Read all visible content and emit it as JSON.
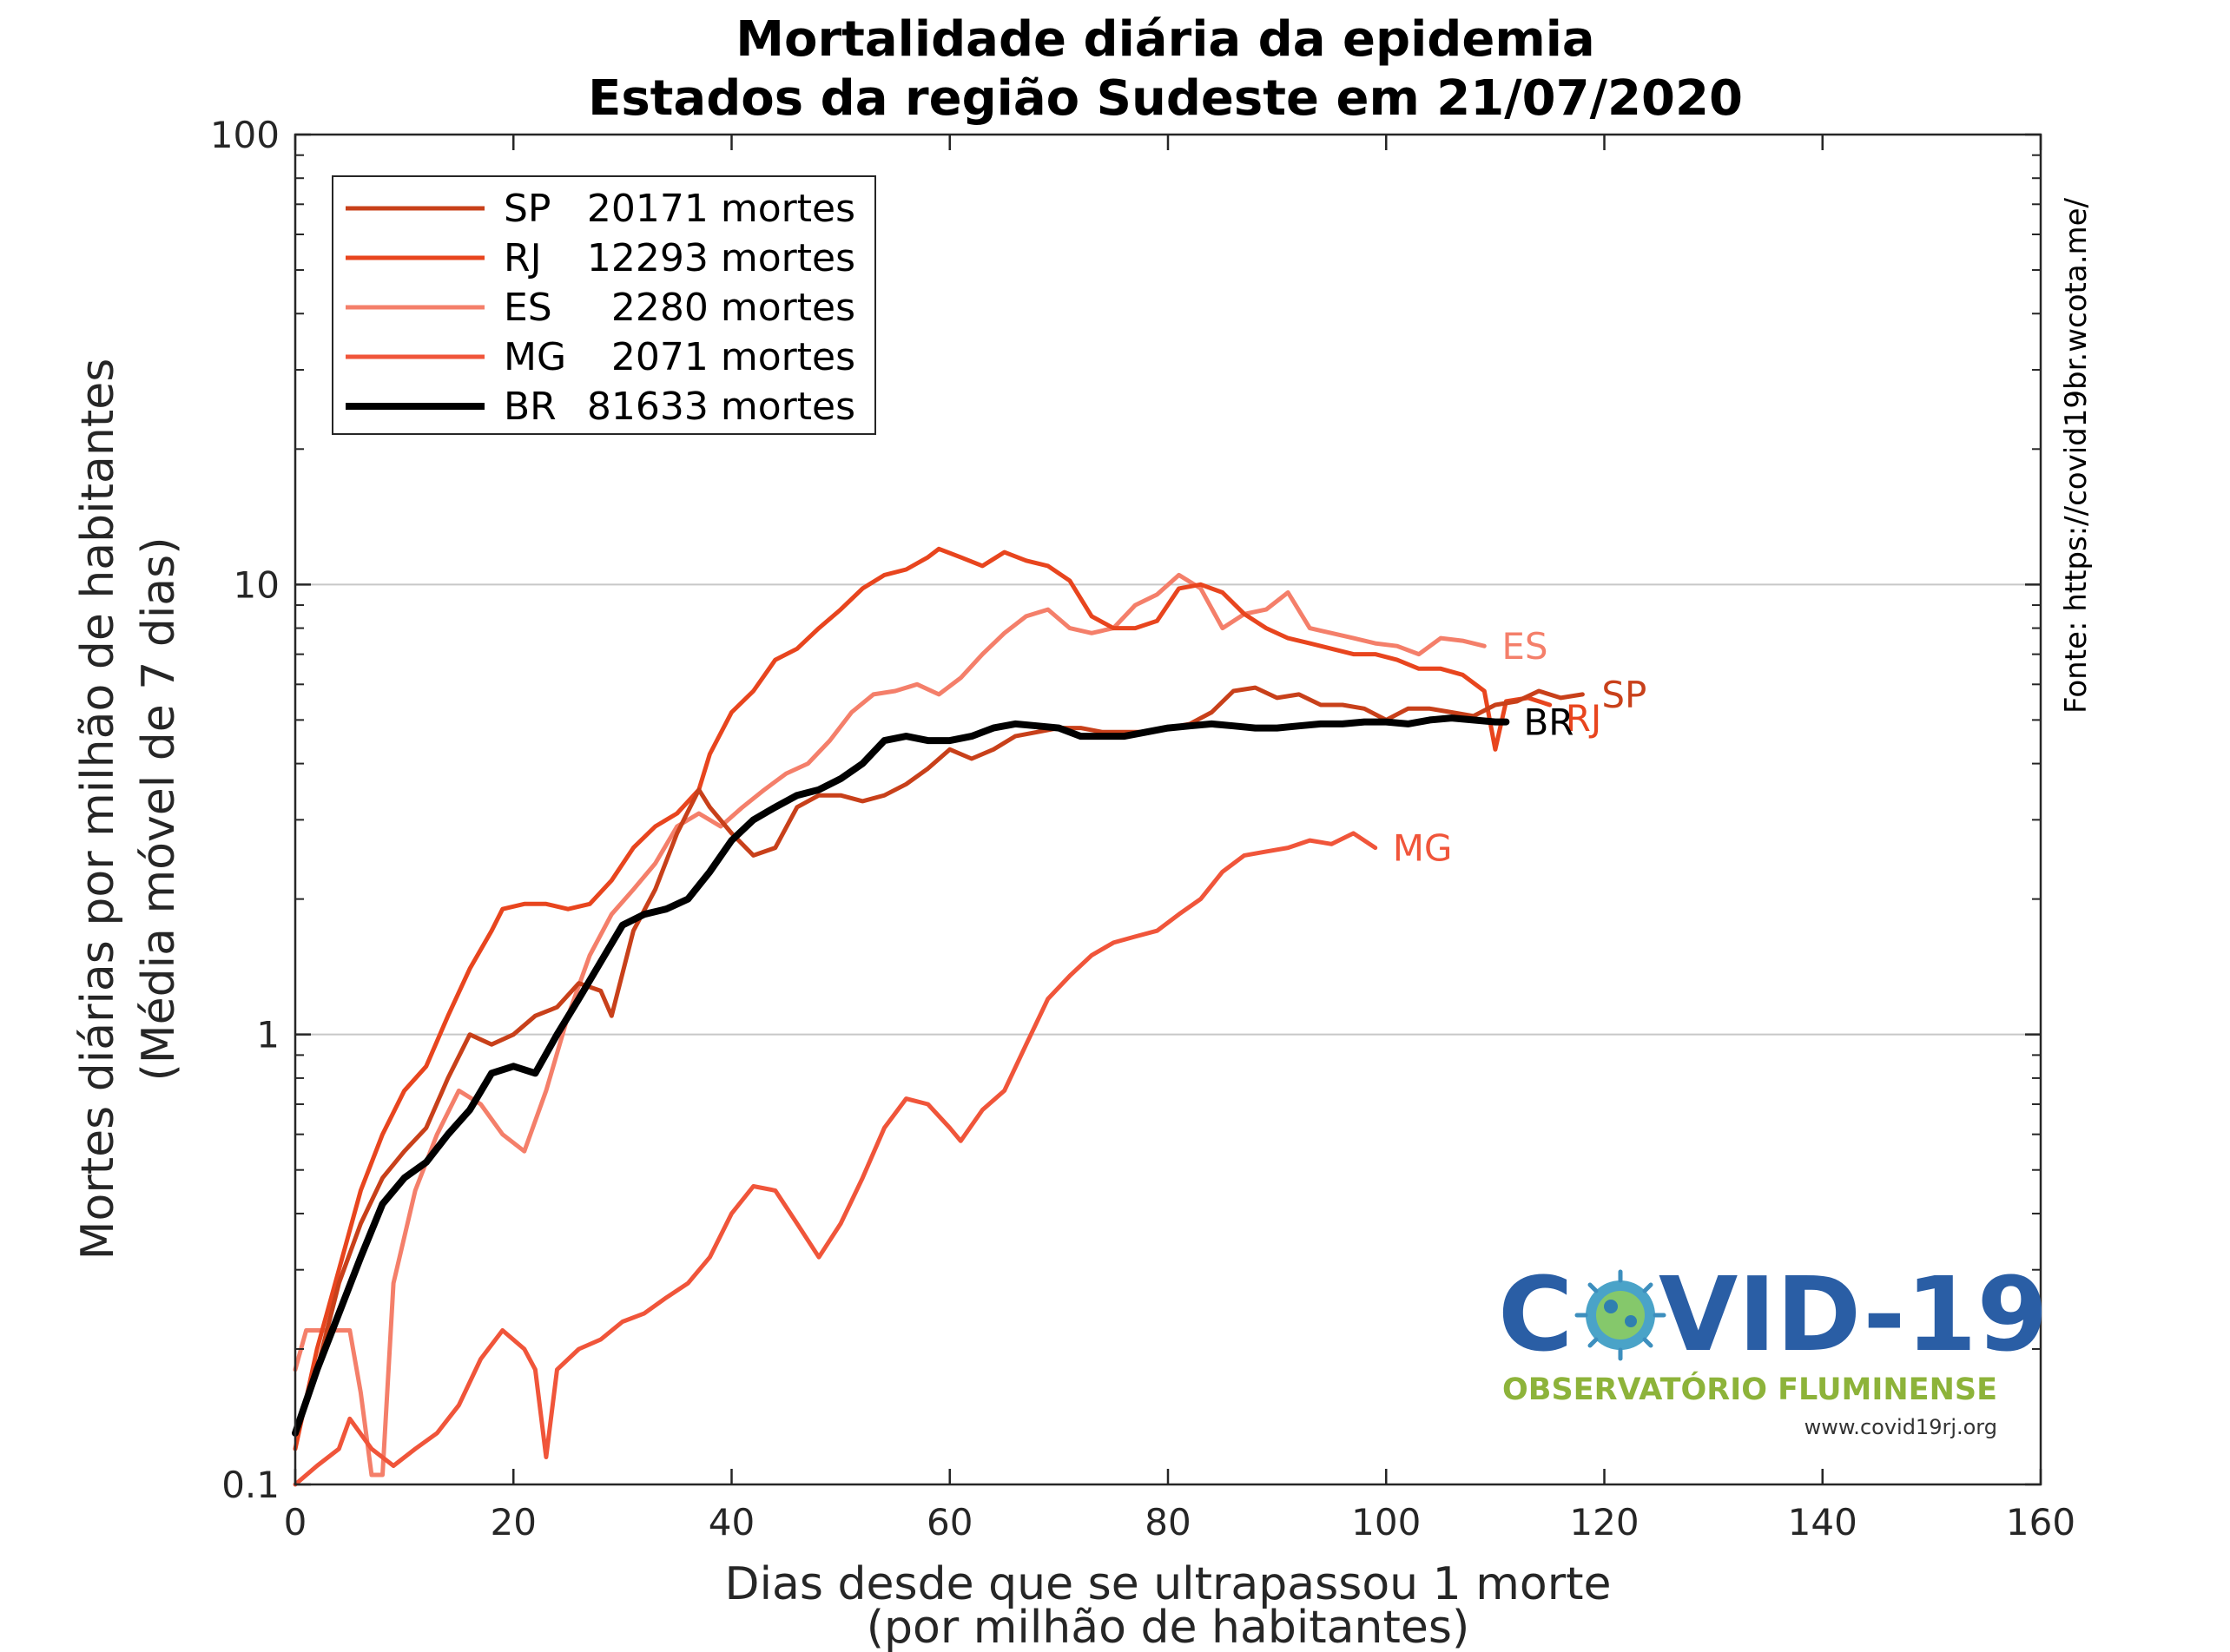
{
  "chart_data": {
    "type": "line",
    "title": "Mortalidade diária da epidemia",
    "subtitle": "Estados da região Sudeste em 21/07/2020",
    "xlabel": "Dias desde que se ultrapassou 1 morte",
    "xlabel2": "(por milhão de habitantes)",
    "ylabel": "Mortes diárias por milhão de habitantes",
    "ylabel2": "(Média móvel de 7 dias)",
    "xlim": [
      0,
      160
    ],
    "ylim": [
      0.1,
      100
    ],
    "yscale": "log",
    "grid": "horizontal major lines",
    "legend_position": "top-left",
    "x_ticks": [
      "0",
      "20",
      "40",
      "60",
      "80",
      "100",
      "120",
      "140",
      "160"
    ],
    "y_ticks": [
      "0.1",
      "1",
      "10",
      "100"
    ],
    "source": "Fonte: https://covid19br.wcota.me/",
    "series": [
      {
        "name": "SP",
        "deaths": "20171 mortes",
        "color": "#c8401a",
        "label": "SP",
        "points": [
          [
            0,
            0.13
          ],
          [
            2,
            0.18
          ],
          [
            4,
            0.28
          ],
          [
            6,
            0.38
          ],
          [
            8,
            0.48
          ],
          [
            10,
            0.55
          ],
          [
            12,
            0.62
          ],
          [
            14,
            0.8
          ],
          [
            16,
            1.0
          ],
          [
            18,
            0.95
          ],
          [
            20,
            1.0
          ],
          [
            22,
            1.1
          ],
          [
            24,
            1.15
          ],
          [
            26,
            1.3
          ],
          [
            28,
            1.25
          ],
          [
            29,
            1.1
          ],
          [
            31,
            1.7
          ],
          [
            33,
            2.1
          ],
          [
            35,
            2.8
          ],
          [
            37,
            3.5
          ],
          [
            38,
            3.2
          ],
          [
            40,
            2.8
          ],
          [
            42,
            2.5
          ],
          [
            44,
            2.6
          ],
          [
            46,
            3.2
          ],
          [
            48,
            3.4
          ],
          [
            50,
            3.4
          ],
          [
            52,
            3.3
          ],
          [
            54,
            3.4
          ],
          [
            56,
            3.6
          ],
          [
            58,
            3.9
          ],
          [
            60,
            4.3
          ],
          [
            62,
            4.1
          ],
          [
            64,
            4.3
          ],
          [
            66,
            4.6
          ],
          [
            68,
            4.7
          ],
          [
            70,
            4.8
          ],
          [
            72,
            4.8
          ],
          [
            74,
            4.7
          ],
          [
            76,
            4.7
          ],
          [
            78,
            4.7
          ],
          [
            80,
            4.8
          ],
          [
            82,
            4.9
          ],
          [
            84,
            5.2
          ],
          [
            86,
            5.8
          ],
          [
            88,
            5.9
          ],
          [
            90,
            5.6
          ],
          [
            92,
            5.7
          ],
          [
            94,
            5.4
          ],
          [
            96,
            5.4
          ],
          [
            98,
            5.3
          ],
          [
            100,
            5.0
          ],
          [
            102,
            5.3
          ],
          [
            104,
            5.3
          ],
          [
            106,
            5.2
          ],
          [
            108,
            5.1
          ],
          [
            110,
            5.4
          ],
          [
            112,
            5.5
          ],
          [
            114,
            5.8
          ],
          [
            116,
            5.6
          ],
          [
            118,
            5.7
          ]
        ]
      },
      {
        "name": "RJ",
        "deaths": "12293 mortes",
        "color": "#e8451e",
        "label": "RJ",
        "points": [
          [
            0,
            0.12
          ],
          [
            2,
            0.2
          ],
          [
            4,
            0.3
          ],
          [
            6,
            0.45
          ],
          [
            8,
            0.6
          ],
          [
            10,
            0.75
          ],
          [
            12,
            0.85
          ],
          [
            14,
            1.1
          ],
          [
            16,
            1.4
          ],
          [
            18,
            1.7
          ],
          [
            19,
            1.9
          ],
          [
            21,
            1.95
          ],
          [
            23,
            1.95
          ],
          [
            25,
            1.9
          ],
          [
            27,
            1.95
          ],
          [
            29,
            2.2
          ],
          [
            31,
            2.6
          ],
          [
            33,
            2.9
          ],
          [
            35,
            3.1
          ],
          [
            37,
            3.5
          ],
          [
            38,
            4.2
          ],
          [
            40,
            5.2
          ],
          [
            42,
            5.8
          ],
          [
            44,
            6.8
          ],
          [
            46,
            7.2
          ],
          [
            48,
            8.0
          ],
          [
            50,
            8.8
          ],
          [
            52,
            9.8
          ],
          [
            54,
            10.5
          ],
          [
            56,
            10.8
          ],
          [
            58,
            11.5
          ],
          [
            59,
            12.0
          ],
          [
            61,
            11.5
          ],
          [
            63,
            11.0
          ],
          [
            65,
            11.8
          ],
          [
            67,
            11.3
          ],
          [
            69,
            11.0
          ],
          [
            71,
            10.2
          ],
          [
            73,
            8.5
          ],
          [
            75,
            8.0
          ],
          [
            77,
            8.0
          ],
          [
            79,
            8.3
          ],
          [
            81,
            9.8
          ],
          [
            83,
            10.0
          ],
          [
            85,
            9.6
          ],
          [
            87,
            8.6
          ],
          [
            89,
            8.0
          ],
          [
            91,
            7.6
          ],
          [
            93,
            7.4
          ],
          [
            95,
            7.2
          ],
          [
            97,
            7.0
          ],
          [
            99,
            7.0
          ],
          [
            101,
            6.8
          ],
          [
            103,
            6.5
          ],
          [
            105,
            6.5
          ],
          [
            107,
            6.3
          ],
          [
            109,
            5.8
          ],
          [
            110,
            4.3
          ],
          [
            111,
            5.5
          ],
          [
            113,
            5.6
          ],
          [
            115,
            5.4
          ]
        ]
      },
      {
        "name": "ES",
        "deaths": "2280 mortes",
        "color": "#f47f6a",
        "label": "ES",
        "points": [
          [
            0,
            0.18
          ],
          [
            1,
            0.22
          ],
          [
            3,
            0.22
          ],
          [
            5,
            0.22
          ],
          [
            6,
            0.16
          ],
          [
            7,
            0.105
          ],
          [
            8,
            0.105
          ],
          [
            9,
            0.28
          ],
          [
            11,
            0.45
          ],
          [
            13,
            0.6
          ],
          [
            15,
            0.75
          ],
          [
            17,
            0.7
          ],
          [
            19,
            0.6
          ],
          [
            21,
            0.55
          ],
          [
            23,
            0.75
          ],
          [
            25,
            1.1
          ],
          [
            27,
            1.5
          ],
          [
            29,
            1.85
          ],
          [
            31,
            2.1
          ],
          [
            33,
            2.4
          ],
          [
            35,
            2.9
          ],
          [
            37,
            3.1
          ],
          [
            39,
            2.9
          ],
          [
            41,
            3.2
          ],
          [
            43,
            3.5
          ],
          [
            45,
            3.8
          ],
          [
            47,
            4.0
          ],
          [
            49,
            4.5
          ],
          [
            51,
            5.2
          ],
          [
            53,
            5.7
          ],
          [
            55,
            5.8
          ],
          [
            57,
            6.0
          ],
          [
            59,
            5.7
          ],
          [
            61,
            6.2
          ],
          [
            63,
            7.0
          ],
          [
            65,
            7.8
          ],
          [
            67,
            8.5
          ],
          [
            69,
            8.8
          ],
          [
            71,
            8.0
          ],
          [
            73,
            7.8
          ],
          [
            75,
            8.0
          ],
          [
            77,
            9.0
          ],
          [
            79,
            9.5
          ],
          [
            81,
            10.5
          ],
          [
            83,
            9.8
          ],
          [
            85,
            8.0
          ],
          [
            87,
            8.6
          ],
          [
            89,
            8.8
          ],
          [
            91,
            9.6
          ],
          [
            93,
            8.0
          ],
          [
            95,
            7.8
          ],
          [
            97,
            7.6
          ],
          [
            99,
            7.4
          ],
          [
            101,
            7.3
          ],
          [
            103,
            7.0
          ],
          [
            105,
            7.6
          ],
          [
            107,
            7.5
          ],
          [
            109,
            7.3
          ]
        ]
      },
      {
        "name": "MG",
        "deaths": "2071 mortes",
        "color": "#f0553a",
        "label": "MG",
        "points": [
          [
            0,
            0.1
          ],
          [
            2,
            0.11
          ],
          [
            4,
            0.12
          ],
          [
            5,
            0.14
          ],
          [
            7,
            0.12
          ],
          [
            9,
            0.11
          ],
          [
            11,
            0.12
          ],
          [
            13,
            0.13
          ],
          [
            15,
            0.15
          ],
          [
            17,
            0.19
          ],
          [
            19,
            0.22
          ],
          [
            21,
            0.2
          ],
          [
            22,
            0.18
          ],
          [
            23,
            0.115
          ],
          [
            24,
            0.18
          ],
          [
            26,
            0.2
          ],
          [
            28,
            0.21
          ],
          [
            30,
            0.23
          ],
          [
            32,
            0.24
          ],
          [
            34,
            0.26
          ],
          [
            36,
            0.28
          ],
          [
            38,
            0.32
          ],
          [
            40,
            0.4
          ],
          [
            42,
            0.46
          ],
          [
            44,
            0.45
          ],
          [
            46,
            0.38
          ],
          [
            48,
            0.32
          ],
          [
            50,
            0.38
          ],
          [
            52,
            0.48
          ],
          [
            54,
            0.62
          ],
          [
            56,
            0.72
          ],
          [
            58,
            0.7
          ],
          [
            60,
            0.62
          ],
          [
            61,
            0.58
          ],
          [
            63,
            0.68
          ],
          [
            65,
            0.75
          ],
          [
            67,
            0.95
          ],
          [
            69,
            1.2
          ],
          [
            71,
            1.35
          ],
          [
            73,
            1.5
          ],
          [
            75,
            1.6
          ],
          [
            77,
            1.65
          ],
          [
            79,
            1.7
          ],
          [
            81,
            1.85
          ],
          [
            83,
            2.0
          ],
          [
            85,
            2.3
          ],
          [
            87,
            2.5
          ],
          [
            89,
            2.55
          ],
          [
            91,
            2.6
          ],
          [
            93,
            2.7
          ],
          [
            95,
            2.65
          ],
          [
            97,
            2.8
          ],
          [
            99,
            2.6
          ]
        ]
      },
      {
        "name": "BR",
        "deaths": "81633 mortes",
        "color": "#000000",
        "label": "BR",
        "points": [
          [
            0,
            0.13
          ],
          [
            2,
            0.18
          ],
          [
            4,
            0.24
          ],
          [
            6,
            0.32
          ],
          [
            8,
            0.42
          ],
          [
            10,
            0.48
          ],
          [
            12,
            0.52
          ],
          [
            14,
            0.6
          ],
          [
            16,
            0.68
          ],
          [
            18,
            0.82
          ],
          [
            20,
            0.85
          ],
          [
            22,
            0.82
          ],
          [
            24,
            1.0
          ],
          [
            26,
            1.2
          ],
          [
            28,
            1.45
          ],
          [
            30,
            1.75
          ],
          [
            32,
            1.85
          ],
          [
            34,
            1.9
          ],
          [
            36,
            2.0
          ],
          [
            38,
            2.3
          ],
          [
            40,
            2.7
          ],
          [
            42,
            3.0
          ],
          [
            44,
            3.2
          ],
          [
            46,
            3.4
          ],
          [
            48,
            3.5
          ],
          [
            50,
            3.7
          ],
          [
            52,
            4.0
          ],
          [
            54,
            4.5
          ],
          [
            56,
            4.6
          ],
          [
            58,
            4.5
          ],
          [
            60,
            4.5
          ],
          [
            62,
            4.6
          ],
          [
            64,
            4.8
          ],
          [
            66,
            4.9
          ],
          [
            68,
            4.85
          ],
          [
            70,
            4.8
          ],
          [
            72,
            4.6
          ],
          [
            74,
            4.6
          ],
          [
            76,
            4.6
          ],
          [
            78,
            4.7
          ],
          [
            80,
            4.8
          ],
          [
            82,
            4.85
          ],
          [
            84,
            4.9
          ],
          [
            86,
            4.85
          ],
          [
            88,
            4.8
          ],
          [
            90,
            4.8
          ],
          [
            92,
            4.85
          ],
          [
            94,
            4.9
          ],
          [
            96,
            4.9
          ],
          [
            98,
            4.95
          ],
          [
            100,
            4.95
          ],
          [
            102,
            4.9
          ],
          [
            104,
            5.0
          ],
          [
            106,
            5.05
          ],
          [
            108,
            5.0
          ],
          [
            110,
            4.95
          ],
          [
            111,
            4.95
          ]
        ]
      }
    ]
  },
  "logo": {
    "title_left": "C",
    "title_right": "VID-19",
    "subtitle": "OBSERVATÓRIO FLUMINENSE",
    "url": "www.covid19rj.org"
  }
}
